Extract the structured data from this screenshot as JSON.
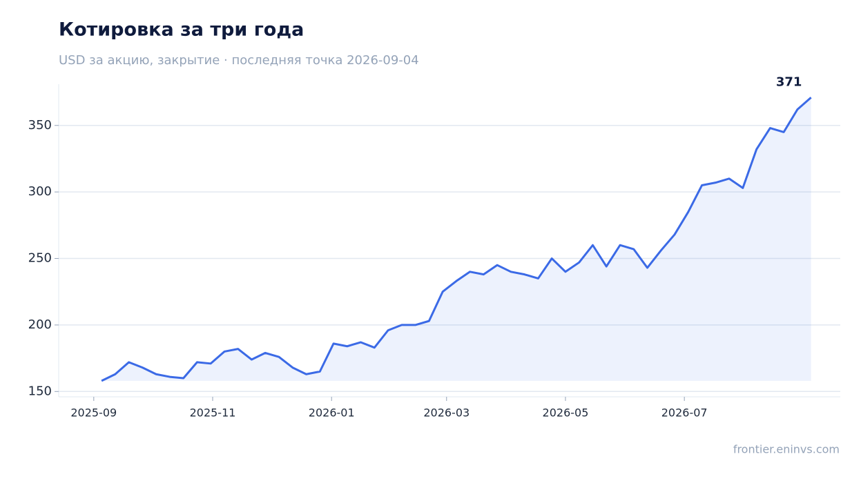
{
  "chart_data": {
    "type": "line",
    "title": "Котировка за три года",
    "subtitle": "USD за акцию, закрытие · последняя точка 2026-09-04",
    "source": "frontier.eninvs.com",
    "x": [
      "2025-09-05",
      "2025-09-12",
      "2025-09-19",
      "2025-09-26",
      "2025-10-03",
      "2025-10-10",
      "2025-10-17",
      "2025-10-24",
      "2025-10-31",
      "2025-11-07",
      "2025-11-14",
      "2025-11-21",
      "2025-11-28",
      "2025-12-05",
      "2025-12-12",
      "2025-12-19",
      "2025-12-26",
      "2026-01-02",
      "2026-01-09",
      "2026-01-16",
      "2026-01-23",
      "2026-01-30",
      "2026-02-06",
      "2026-02-13",
      "2026-02-20",
      "2026-02-27",
      "2026-03-06",
      "2026-03-13",
      "2026-03-20",
      "2026-03-27",
      "2026-04-03",
      "2026-04-10",
      "2026-04-17",
      "2026-04-24",
      "2026-05-01",
      "2026-05-08",
      "2026-05-15",
      "2026-05-22",
      "2026-05-29",
      "2026-06-05",
      "2026-06-12",
      "2026-06-19",
      "2026-06-26",
      "2026-07-03",
      "2026-07-10",
      "2026-07-17",
      "2026-07-24",
      "2026-07-31",
      "2026-08-07",
      "2026-08-14",
      "2026-08-21",
      "2026-08-28",
      "2026-09-04"
    ],
    "values": [
      158,
      163,
      172,
      168,
      163,
      161,
      160,
      172,
      171,
      180,
      182,
      174,
      179,
      176,
      168,
      163,
      165,
      186,
      184,
      187,
      183,
      196,
      200,
      200,
      203,
      225,
      233,
      240,
      238,
      245,
      240,
      238,
      235,
      250,
      240,
      247,
      260,
      244,
      260,
      257,
      243,
      256,
      268,
      285,
      305,
      307,
      310,
      303,
      332,
      348,
      345,
      362,
      371
    ],
    "color": "#3b6ae6",
    "xlim": [
      "2025-08-14",
      "2026-09-19"
    ],
    "xticks": [
      "2025-09",
      "2025-11",
      "2026-01",
      "2026-03",
      "2026-05",
      "2026-07"
    ],
    "ylim": [
      146,
      381
    ],
    "yticks": [
      150,
      200,
      250,
      300,
      350
    ],
    "grid": true
  }
}
